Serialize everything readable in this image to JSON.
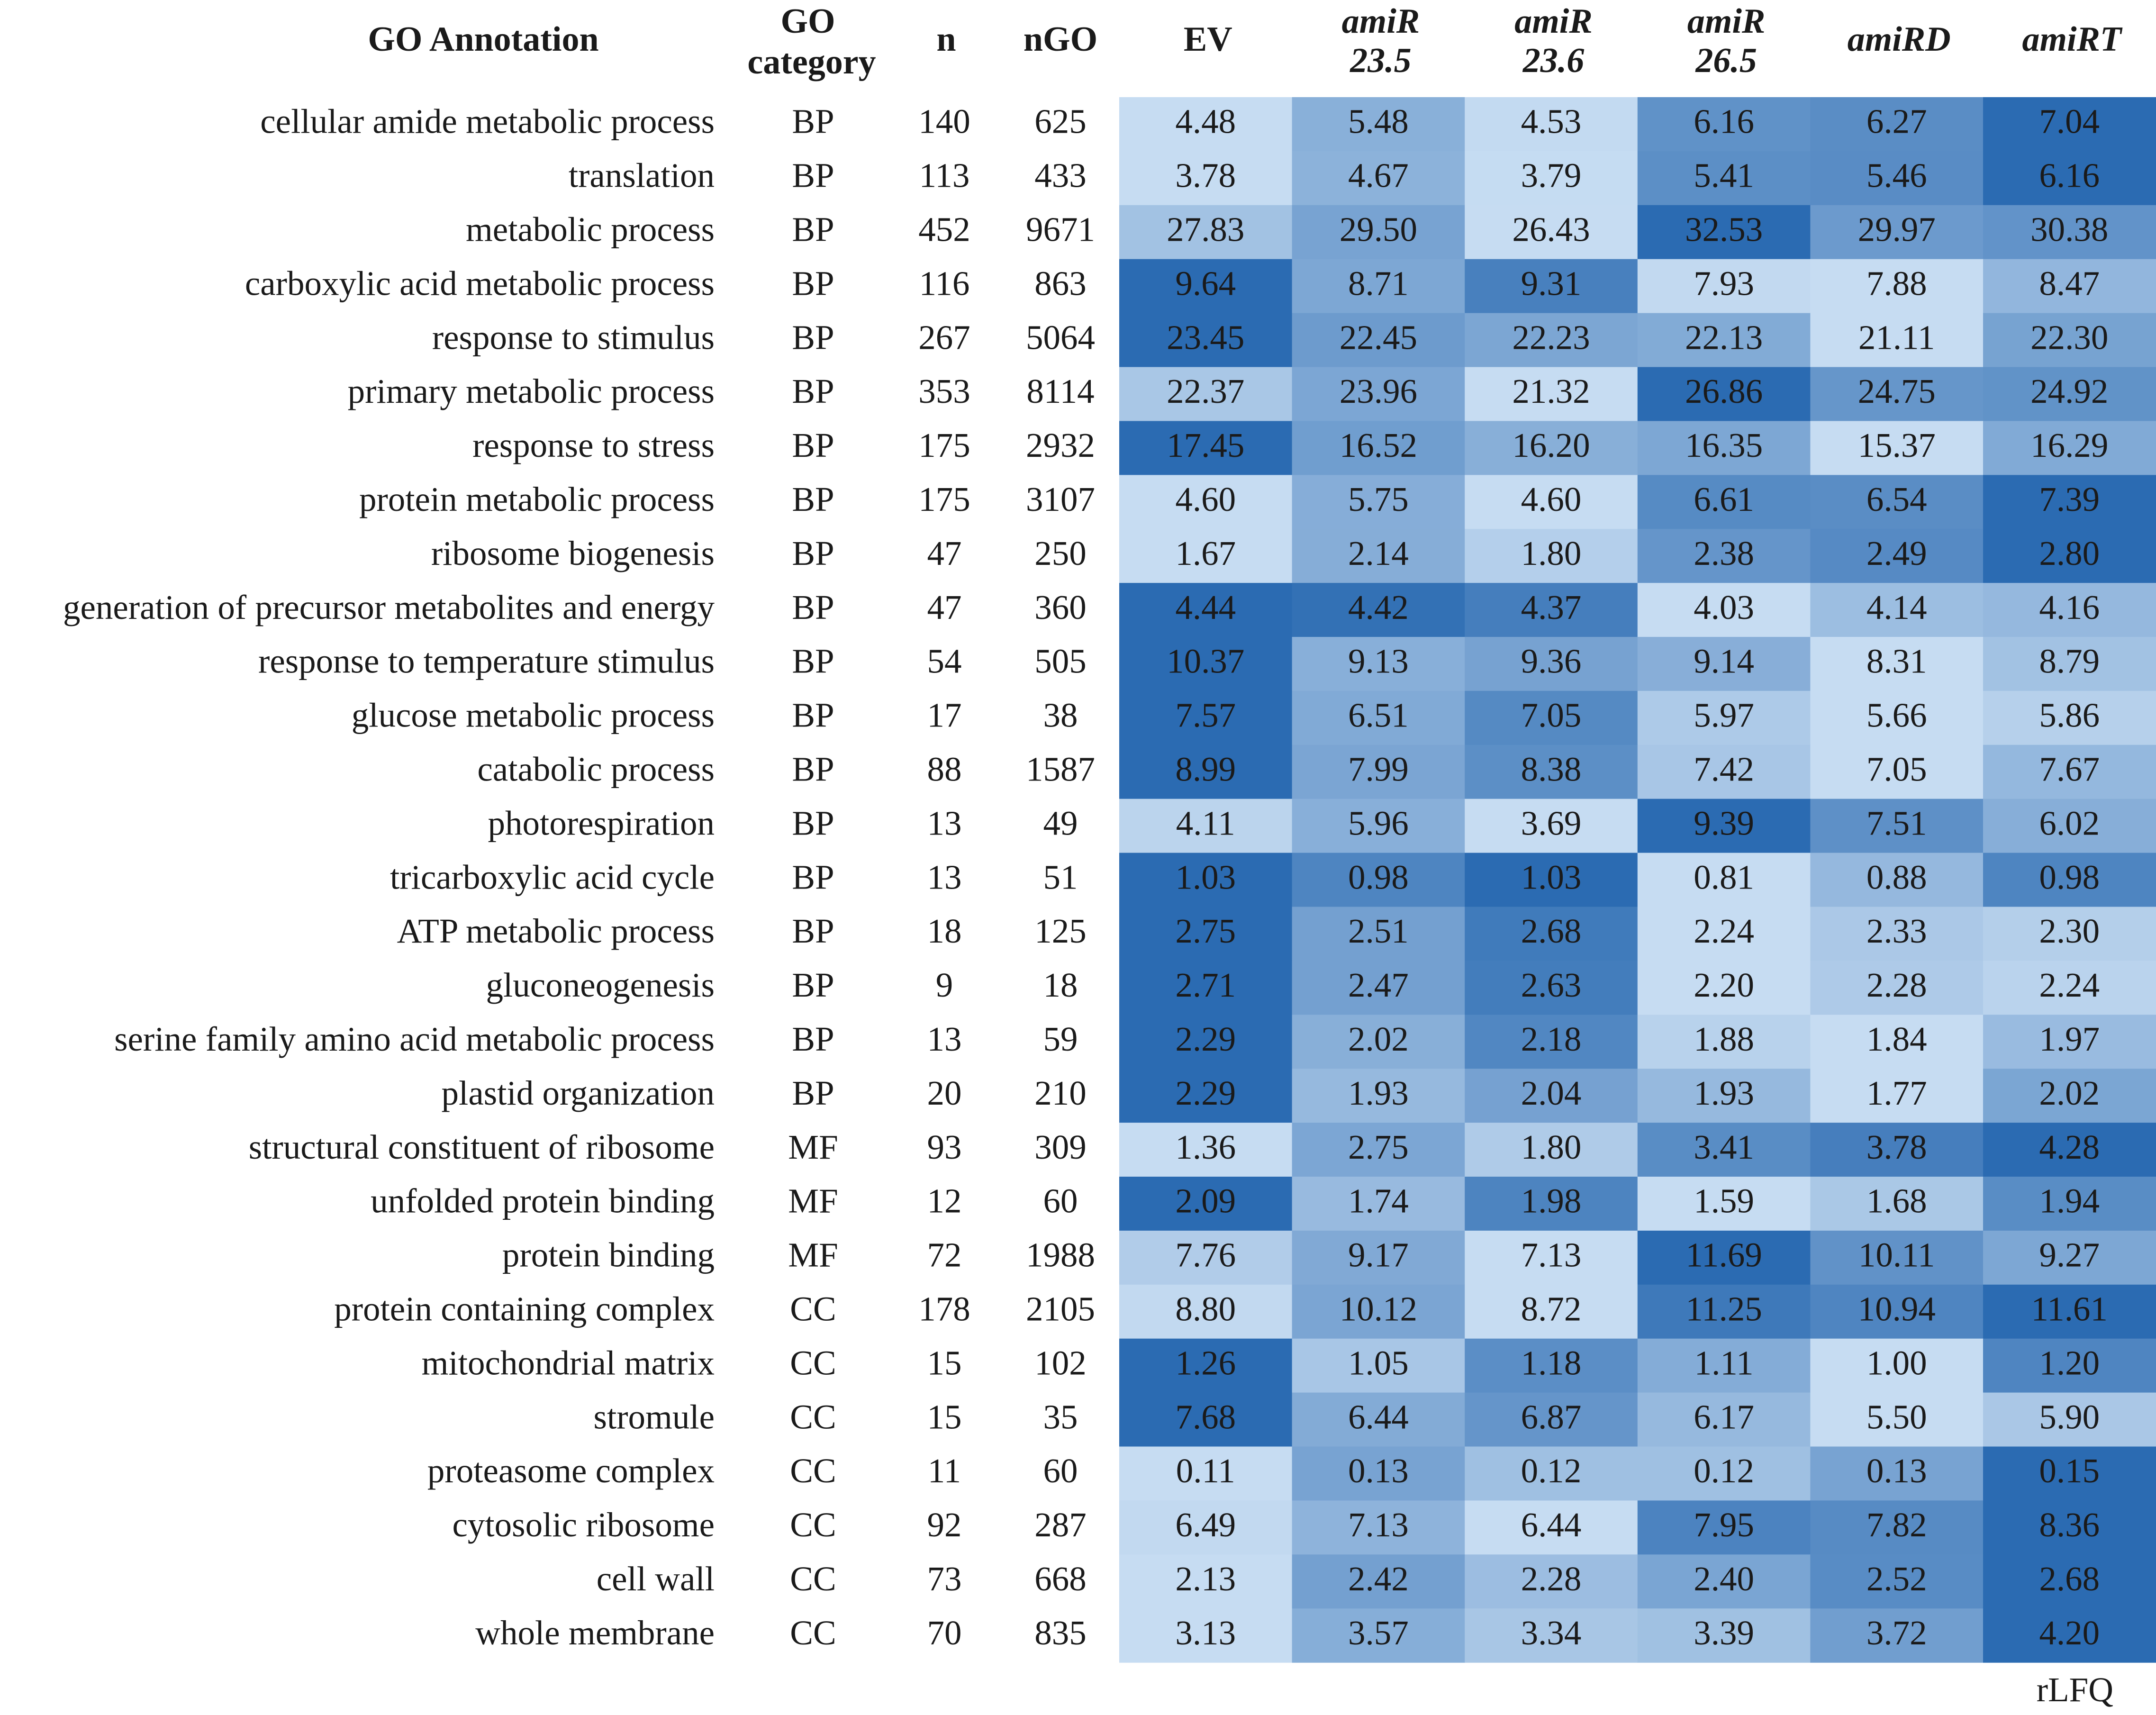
{
  "chart_data": {
    "type": "heatmap",
    "headers": {
      "annotation": "GO Annotation",
      "category": [
        "GO",
        "category"
      ],
      "n": "n",
      "ngo": "nGO"
    },
    "columns": [
      {
        "lines": [
          "EV"
        ],
        "italic": false
      },
      {
        "lines": [
          "amiR",
          "23.5"
        ],
        "italic": true
      },
      {
        "lines": [
          "amiR",
          "23.6"
        ],
        "italic": true
      },
      {
        "lines": [
          "amiR",
          "26.5"
        ],
        "italic": true
      },
      {
        "lines": [
          "amiRD"
        ],
        "italic": true
      },
      {
        "lines": [
          "amiRT"
        ],
        "italic": true
      }
    ],
    "rows": [
      {
        "name": "cellular amide metabolic process",
        "category": "BP",
        "n": "140",
        "ngo": "625",
        "values": [
          "4.48",
          "5.48",
          "4.53",
          "6.16",
          "6.27",
          "7.04"
        ]
      },
      {
        "name": "translation",
        "category": "BP",
        "n": "113",
        "ngo": "433",
        "values": [
          "3.78",
          "4.67",
          "3.79",
          "5.41",
          "5.46",
          "6.16"
        ]
      },
      {
        "name": "metabolic process",
        "category": "BP",
        "n": "452",
        "ngo": "9671",
        "values": [
          "27.83",
          "29.50",
          "26.43",
          "32.53",
          "29.97",
          "30.38"
        ]
      },
      {
        "name": "carboxylic acid metabolic process",
        "category": "BP",
        "n": "116",
        "ngo": "863",
        "values": [
          "9.64",
          "8.71",
          "9.31",
          "7.93",
          "7.88",
          "8.47"
        ]
      },
      {
        "name": "response to stimulus",
        "category": "BP",
        "n": "267",
        "ngo": "5064",
        "values": [
          "23.45",
          "22.45",
          "22.23",
          "22.13",
          "21.11",
          "22.30"
        ]
      },
      {
        "name": "primary metabolic process",
        "category": "BP",
        "n": "353",
        "ngo": "8114",
        "values": [
          "22.37",
          "23.96",
          "21.32",
          "26.86",
          "24.75",
          "24.92"
        ]
      },
      {
        "name": "response to stress",
        "category": "BP",
        "n": "175",
        "ngo": "2932",
        "values": [
          "17.45",
          "16.52",
          "16.20",
          "16.35",
          "15.37",
          "16.29"
        ]
      },
      {
        "name": "protein metabolic process",
        "category": "BP",
        "n": "175",
        "ngo": "3107",
        "values": [
          "4.60",
          "5.75",
          "4.60",
          "6.61",
          "6.54",
          "7.39"
        ]
      },
      {
        "name": "ribosome biogenesis",
        "category": "BP",
        "n": "47",
        "ngo": "250",
        "values": [
          "1.67",
          "2.14",
          "1.80",
          "2.38",
          "2.49",
          "2.80"
        ]
      },
      {
        "name": "generation of precursor metabolites and energy",
        "category": "BP",
        "n": "47",
        "ngo": "360",
        "values": [
          "4.44",
          "4.42",
          "4.37",
          "4.03",
          "4.14",
          "4.16"
        ]
      },
      {
        "name": "response to temperature stimulus",
        "category": "BP",
        "n": "54",
        "ngo": "505",
        "values": [
          "10.37",
          "9.13",
          "9.36",
          "9.14",
          "8.31",
          "8.79"
        ]
      },
      {
        "name": "glucose metabolic process",
        "category": "BP",
        "n": "17",
        "ngo": "38",
        "values": [
          "7.57",
          "6.51",
          "7.05",
          "5.97",
          "5.66",
          "5.86"
        ]
      },
      {
        "name": "catabolic process",
        "category": "BP",
        "n": "88",
        "ngo": "1587",
        "values": [
          "8.99",
          "7.99",
          "8.38",
          "7.42",
          "7.05",
          "7.67"
        ]
      },
      {
        "name": "photorespiration",
        "category": "BP",
        "n": "13",
        "ngo": "49",
        "values": [
          "4.11",
          "5.96",
          "3.69",
          "9.39",
          "7.51",
          "6.02"
        ]
      },
      {
        "name": "tricarboxylic acid cycle",
        "category": "BP",
        "n": "13",
        "ngo": "51",
        "values": [
          "1.03",
          "0.98",
          "1.03",
          "0.81",
          "0.88",
          "0.98"
        ]
      },
      {
        "name": "ATP metabolic process",
        "category": "BP",
        "n": "18",
        "ngo": "125",
        "values": [
          "2.75",
          "2.51",
          "2.68",
          "2.24",
          "2.33",
          "2.30"
        ]
      },
      {
        "name": "gluconeogenesis",
        "category": "BP",
        "n": "9",
        "ngo": "18",
        "values": [
          "2.71",
          "2.47",
          "2.63",
          "2.20",
          "2.28",
          "2.24"
        ]
      },
      {
        "name": "serine family amino acid metabolic process",
        "category": "BP",
        "n": "13",
        "ngo": "59",
        "values": [
          "2.29",
          "2.02",
          "2.18",
          "1.88",
          "1.84",
          "1.97"
        ]
      },
      {
        "name": "plastid organization",
        "category": "BP",
        "n": "20",
        "ngo": "210",
        "values": [
          "2.29",
          "1.93",
          "2.04",
          "1.93",
          "1.77",
          "2.02"
        ]
      },
      {
        "name": "structural constituent of ribosome",
        "category": "MF",
        "n": "93",
        "ngo": "309",
        "values": [
          "1.36",
          "2.75",
          "1.80",
          "3.41",
          "3.78",
          "4.28"
        ]
      },
      {
        "name": "unfolded protein binding",
        "category": "MF",
        "n": "12",
        "ngo": "60",
        "values": [
          "2.09",
          "1.74",
          "1.98",
          "1.59",
          "1.68",
          "1.94"
        ]
      },
      {
        "name": "protein binding",
        "category": "MF",
        "n": "72",
        "ngo": "1988",
        "values": [
          "7.76",
          "9.17",
          "7.13",
          "11.69",
          "10.11",
          "9.27"
        ]
      },
      {
        "name": "protein containing complex",
        "category": "CC",
        "n": "178",
        "ngo": "2105",
        "values": [
          "8.80",
          "10.12",
          "8.72",
          "11.25",
          "10.94",
          "11.61"
        ]
      },
      {
        "name": "mitochondrial matrix",
        "category": "CC",
        "n": "15",
        "ngo": "102",
        "values": [
          "1.26",
          "1.05",
          "1.18",
          "1.11",
          "1.00",
          "1.20"
        ]
      },
      {
        "name": "stromule",
        "category": "CC",
        "n": "15",
        "ngo": "35",
        "values": [
          "7.68",
          "6.44",
          "6.87",
          "6.17",
          "5.50",
          "5.90"
        ]
      },
      {
        "name": "proteasome complex",
        "category": "CC",
        "n": "11",
        "ngo": "60",
        "values": [
          "0.11",
          "0.13",
          "0.12",
          "0.12",
          "0.13",
          "0.15"
        ]
      },
      {
        "name": "cytosolic ribosome",
        "category": "CC",
        "n": "92",
        "ngo": "287",
        "values": [
          "6.49",
          "7.13",
          "6.44",
          "7.95",
          "7.82",
          "8.36"
        ]
      },
      {
        "name": "cell wall",
        "category": "CC",
        "n": "73",
        "ngo": "668",
        "values": [
          "2.13",
          "2.42",
          "2.28",
          "2.40",
          "2.52",
          "2.68"
        ]
      },
      {
        "name": "whole membrane",
        "category": "CC",
        "n": "70",
        "ngo": "835",
        "values": [
          "3.13",
          "3.57",
          "3.34",
          "3.39",
          "3.72",
          "4.20"
        ]
      }
    ],
    "color_scale": {
      "low": "#c6dcf2",
      "high": "#2b6bb2",
      "basis": "per-row min-max"
    },
    "footer": "rLFQ"
  }
}
